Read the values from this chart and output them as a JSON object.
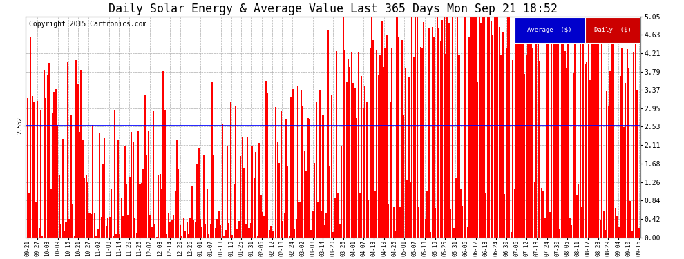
{
  "title": "Daily Solar Energy & Average Value Last 365 Days Mon Sep 21 18:52",
  "copyright": "Copyright 2015 Cartronics.com",
  "average_value": 2.552,
  "average_label": "Average  ($)",
  "daily_label": "Daily  ($)",
  "ylim": [
    0.0,
    5.05
  ],
  "yticks": [
    0.0,
    0.42,
    0.84,
    1.26,
    1.68,
    2.11,
    2.53,
    2.95,
    3.37,
    3.79,
    4.21,
    4.63,
    5.05
  ],
  "bar_color": "#ff0000",
  "avg_line_color": "#0000ff",
  "background_color": "#ffffff",
  "grid_color": "#999999",
  "title_fontsize": 12,
  "copyright_fontsize": 7,
  "avg_label_bg": "#0000cc",
  "daily_label_bg": "#cc0000",
  "x_tick_labels": [
    "09-21",
    "09-27",
    "10-03",
    "10-09",
    "10-15",
    "10-21",
    "10-27",
    "11-02",
    "11-08",
    "11-14",
    "11-20",
    "11-26",
    "12-02",
    "12-08",
    "12-14",
    "12-20",
    "12-26",
    "01-01",
    "01-07",
    "01-13",
    "01-19",
    "01-25",
    "01-31",
    "02-06",
    "02-12",
    "02-18",
    "02-24",
    "03-02",
    "03-08",
    "03-14",
    "03-20",
    "03-26",
    "04-01",
    "04-07",
    "04-13",
    "04-19",
    "04-25",
    "05-01",
    "05-07",
    "05-13",
    "05-19",
    "05-25",
    "05-31",
    "06-06",
    "06-12",
    "06-18",
    "06-24",
    "06-30",
    "07-06",
    "07-12",
    "07-18",
    "07-24",
    "07-30",
    "08-05",
    "08-11",
    "08-17",
    "08-23",
    "08-29",
    "09-04",
    "09-10",
    "09-16"
  ]
}
